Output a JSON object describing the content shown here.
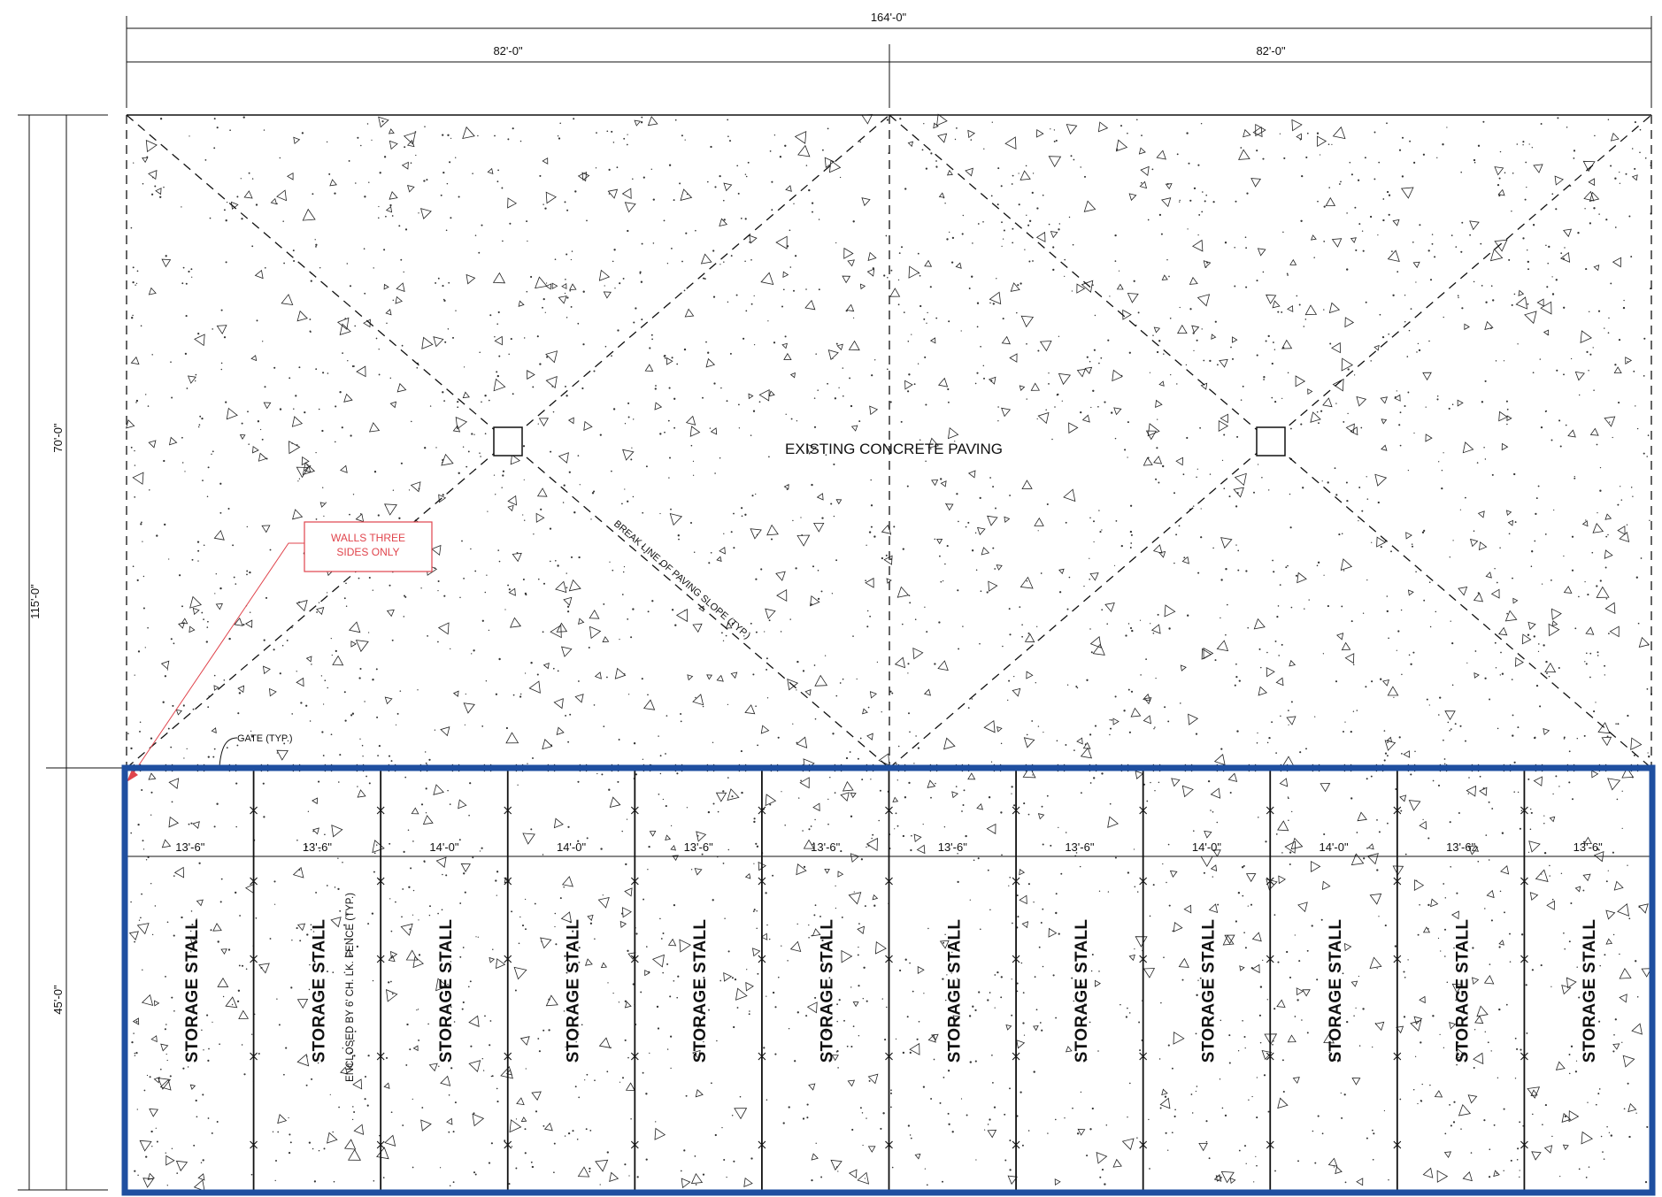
{
  "dimensions": {
    "overall_width": "164'-0\"",
    "half_left": "82'-0\"",
    "half_right": "82'-0\"",
    "overall_depth": "115'-0\"",
    "upper_depth": "70'-0\"",
    "lower_depth": "45'-0\""
  },
  "labels": {
    "paving": "EXISTING CONCRETE PAVING",
    "break_line": "BREAK LINE OF PAVING SLOPE (TYP.)",
    "gate": "GATE (TYP.)",
    "fence_note": "ENCLOSED BY 6' CH. LK. FENCE (TYP.)"
  },
  "callout": {
    "line1": "WALLS THREE",
    "line2": "SIDES ONLY"
  },
  "stalls": [
    {
      "label": "STORAGE STALL",
      "width": "13'-6\""
    },
    {
      "label": "STORAGE STALL",
      "width": "13'-6\""
    },
    {
      "label": "STORAGE STALL",
      "width": "14'-0\""
    },
    {
      "label": "STORAGE STALL",
      "width": "14'-0\""
    },
    {
      "label": "STORAGE STALL",
      "width": "13'-6\""
    },
    {
      "label": "STORAGE STALL",
      "width": "13'-6\""
    },
    {
      "label": "STORAGE STALL",
      "width": "13'-6\""
    },
    {
      "label": "STORAGE STALL",
      "width": "13'-6\""
    },
    {
      "label": "STORAGE STALL",
      "width": "14'-0\""
    },
    {
      "label": "STORAGE STALL",
      "width": "14'-0\""
    },
    {
      "label": "STORAGE STALL",
      "width": "13'-6\""
    },
    {
      "label": "STORAGE STALL",
      "width": "13'-6\""
    }
  ],
  "colors": {
    "line": "#111111",
    "highlight_border": "#1f4fa0",
    "callout": "#e0444c"
  }
}
